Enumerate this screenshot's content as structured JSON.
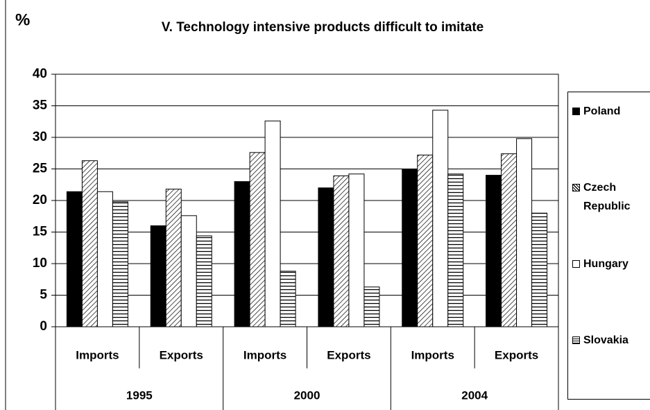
{
  "chart_data": {
    "type": "bar",
    "title": "V. Technology intensive products  difficult to imitate",
    "ylabel": "%",
    "categories": [
      "Imports",
      "Exports",
      "Imports",
      "Exports",
      "Imports",
      "Exports"
    ],
    "groups": [
      "1995",
      "2000",
      "2004"
    ],
    "series": [
      {
        "name": "Poland",
        "color": "#000000",
        "pattern": "solid",
        "values": [
          21.4,
          16,
          23,
          22,
          25,
          24
        ]
      },
      {
        "name": "Czech Republic",
        "color": "#000000",
        "pattern": "diagonal",
        "values": [
          26.3,
          21.8,
          27.6,
          23.9,
          27.2,
          27.4
        ]
      },
      {
        "name": "Hungary",
        "color": "#ffffff",
        "pattern": "none",
        "values": [
          21.4,
          17.6,
          32.6,
          24.2,
          34.3,
          29.8
        ]
      },
      {
        "name": "Slovakia",
        "color": "#000000",
        "pattern": "horizontal",
        "values": [
          19.8,
          14.4,
          8.8,
          6.3,
          24.2,
          18
        ]
      }
    ],
    "ylim": [
      0,
      40
    ],
    "yticks": [
      0,
      5,
      10,
      15,
      20,
      25,
      30,
      35,
      40
    ],
    "grid": true,
    "legend": "right"
  }
}
